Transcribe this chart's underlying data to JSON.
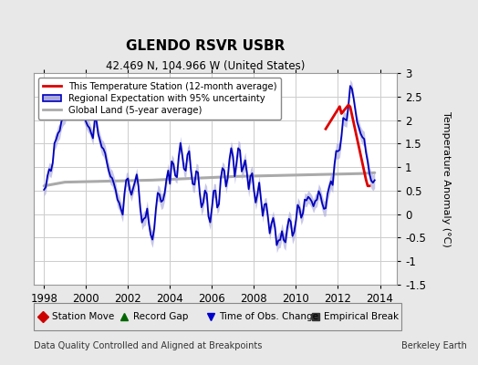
{
  "title": "GLENDO RSVR USBR",
  "subtitle": "42.469 N, 104.966 W (United States)",
  "ylabel": "Temperature Anomaly (°C)",
  "xlabel_bottom_left": "Data Quality Controlled and Aligned at Breakpoints",
  "xlabel_bottom_right": "Berkeley Earth",
  "ylim": [
    -1.5,
    3.0
  ],
  "xlim": [
    1997.5,
    2014.8
  ],
  "xticks": [
    1998,
    2000,
    2002,
    2004,
    2006,
    2008,
    2010,
    2012,
    2014
  ],
  "yticks": [
    -1.5,
    -1.0,
    -0.5,
    0.0,
    0.5,
    1.0,
    1.5,
    2.0,
    2.5,
    3.0
  ],
  "bg_color": "#e8e8e8",
  "plot_bg_color": "#ffffff",
  "grid_color": "#cccccc",
  "blue_line_color": "#0000bb",
  "blue_fill_color": "#aaaadd",
  "red_line_color": "#dd0000",
  "gray_line_color": "#aaaaaa",
  "legend_items": [
    "This Temperature Station (12-month average)",
    "Regional Expectation with 95% uncertainty",
    "Global Land (5-year average)"
  ],
  "bottom_legend": [
    {
      "marker": "D",
      "color": "#cc0000",
      "label": "Station Move"
    },
    {
      "marker": "^",
      "color": "#006600",
      "label": "Record Gap"
    },
    {
      "marker": "v",
      "color": "#0000cc",
      "label": "Time of Obs. Change"
    },
    {
      "marker": "s",
      "color": "#333333",
      "label": "Empirical Break"
    }
  ]
}
